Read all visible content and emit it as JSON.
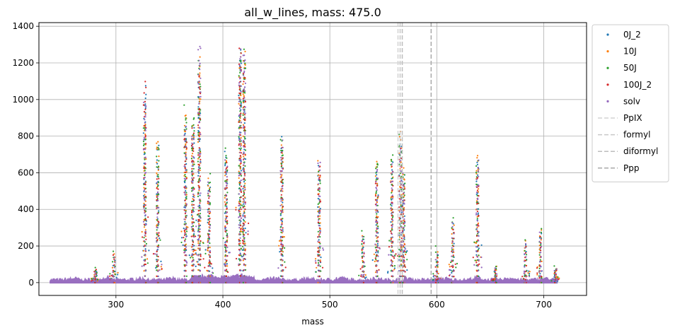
{
  "chart_data": {
    "type": "scatter",
    "title": "all_w_lines, mass: 475.0",
    "xlabel": "mass",
    "ylabel": "",
    "xlim": [
      228,
      740
    ],
    "ylim": [
      -70,
      1420
    ],
    "xticks": [
      300,
      400,
      500,
      600,
      700
    ],
    "yticks": [
      0,
      200,
      400,
      600,
      800,
      1000,
      1200,
      1400
    ],
    "grid": true,
    "legend_position": "outside-right-top",
    "series": [
      {
        "name": "0J_2",
        "color": "#1f77b4"
      },
      {
        "name": "10J",
        "color": "#ff7f0e"
      },
      {
        "name": "50J",
        "color": "#2ca02c"
      },
      {
        "name": "100J_2",
        "color": "#d62728"
      },
      {
        "name": "solv",
        "color": "#9467bd"
      }
    ],
    "baseline": {
      "x_range": [
        238,
        713
      ],
      "level": 20
    },
    "peaks": [
      {
        "x": 281,
        "heights": [
          60,
          70,
          85,
          75,
          60
        ]
      },
      {
        "x": 298,
        "heights": [
          150,
          165,
          175,
          160,
          140
        ]
      },
      {
        "x": 327,
        "heights": [
          1100,
          950,
          900,
          1120,
          1030
        ]
      },
      {
        "x": 339,
        "heights": [
          780,
          830,
          760,
          600,
          560
        ]
      },
      {
        "x": 365,
        "heights": [
          900,
          960,
          975,
          850,
          870
        ]
      },
      {
        "x": 372,
        "heights": [
          860,
          870,
          960,
          880,
          850
        ]
      },
      {
        "x": 378,
        "heights": [
          1150,
          1250,
          1240,
          1140,
          1350
        ]
      },
      {
        "x": 387,
        "heights": [
          550,
          580,
          600,
          520,
          560
        ]
      },
      {
        "x": 403,
        "heights": [
          720,
          700,
          740,
          690,
          710
        ]
      },
      {
        "x": 416,
        "heights": [
          1300,
          1250,
          1300,
          1280,
          1325
        ]
      },
      {
        "x": 420,
        "heights": [
          1200,
          1320,
          1290,
          1180,
          1310
        ]
      },
      {
        "x": 455,
        "heights": [
          800,
          770,
          820,
          760,
          790
        ]
      },
      {
        "x": 490,
        "heights": [
          660,
          690,
          620,
          640,
          690
        ]
      },
      {
        "x": 531,
        "heights": [
          250,
          260,
          290,
          240,
          270
        ]
      },
      {
        "x": 544,
        "heights": [
          640,
          680,
          705,
          600,
          650
        ]
      },
      {
        "x": 558,
        "heights": [
          660,
          690,
          720,
          640,
          650
        ]
      },
      {
        "x": 566,
        "heights": [
          800,
          860,
          830,
          750,
          780
        ]
      },
      {
        "x": 569,
        "heights": [
          600,
          640,
          620,
          560,
          600
        ]
      },
      {
        "x": 600,
        "heights": [
          150,
          170,
          200,
          140,
          160
        ]
      },
      {
        "x": 615,
        "heights": [
          330,
          340,
          360,
          310,
          330
        ]
      },
      {
        "x": 638,
        "heights": [
          700,
          720,
          680,
          660,
          690
        ]
      },
      {
        "x": 655,
        "heights": [
          80,
          90,
          95,
          85,
          80
        ]
      },
      {
        "x": 683,
        "heights": [
          210,
          230,
          235,
          200,
          220
        ]
      },
      {
        "x": 697,
        "heights": [
          270,
          290,
          310,
          260,
          280
        ]
      },
      {
        "x": 711,
        "heights": [
          70,
          80,
          95,
          70,
          80
        ]
      }
    ],
    "vlines": [
      {
        "name": "PpIX",
        "x": 563.7,
        "color": "#d3d3d3"
      },
      {
        "name": "formyl",
        "x": 565.7,
        "color": "#c8c8c8"
      },
      {
        "name": "diformyl",
        "x": 567.7,
        "color": "#bdbdbd"
      },
      {
        "name": "Ppp",
        "x": 594.7,
        "color": "#a9a9a9"
      }
    ]
  }
}
